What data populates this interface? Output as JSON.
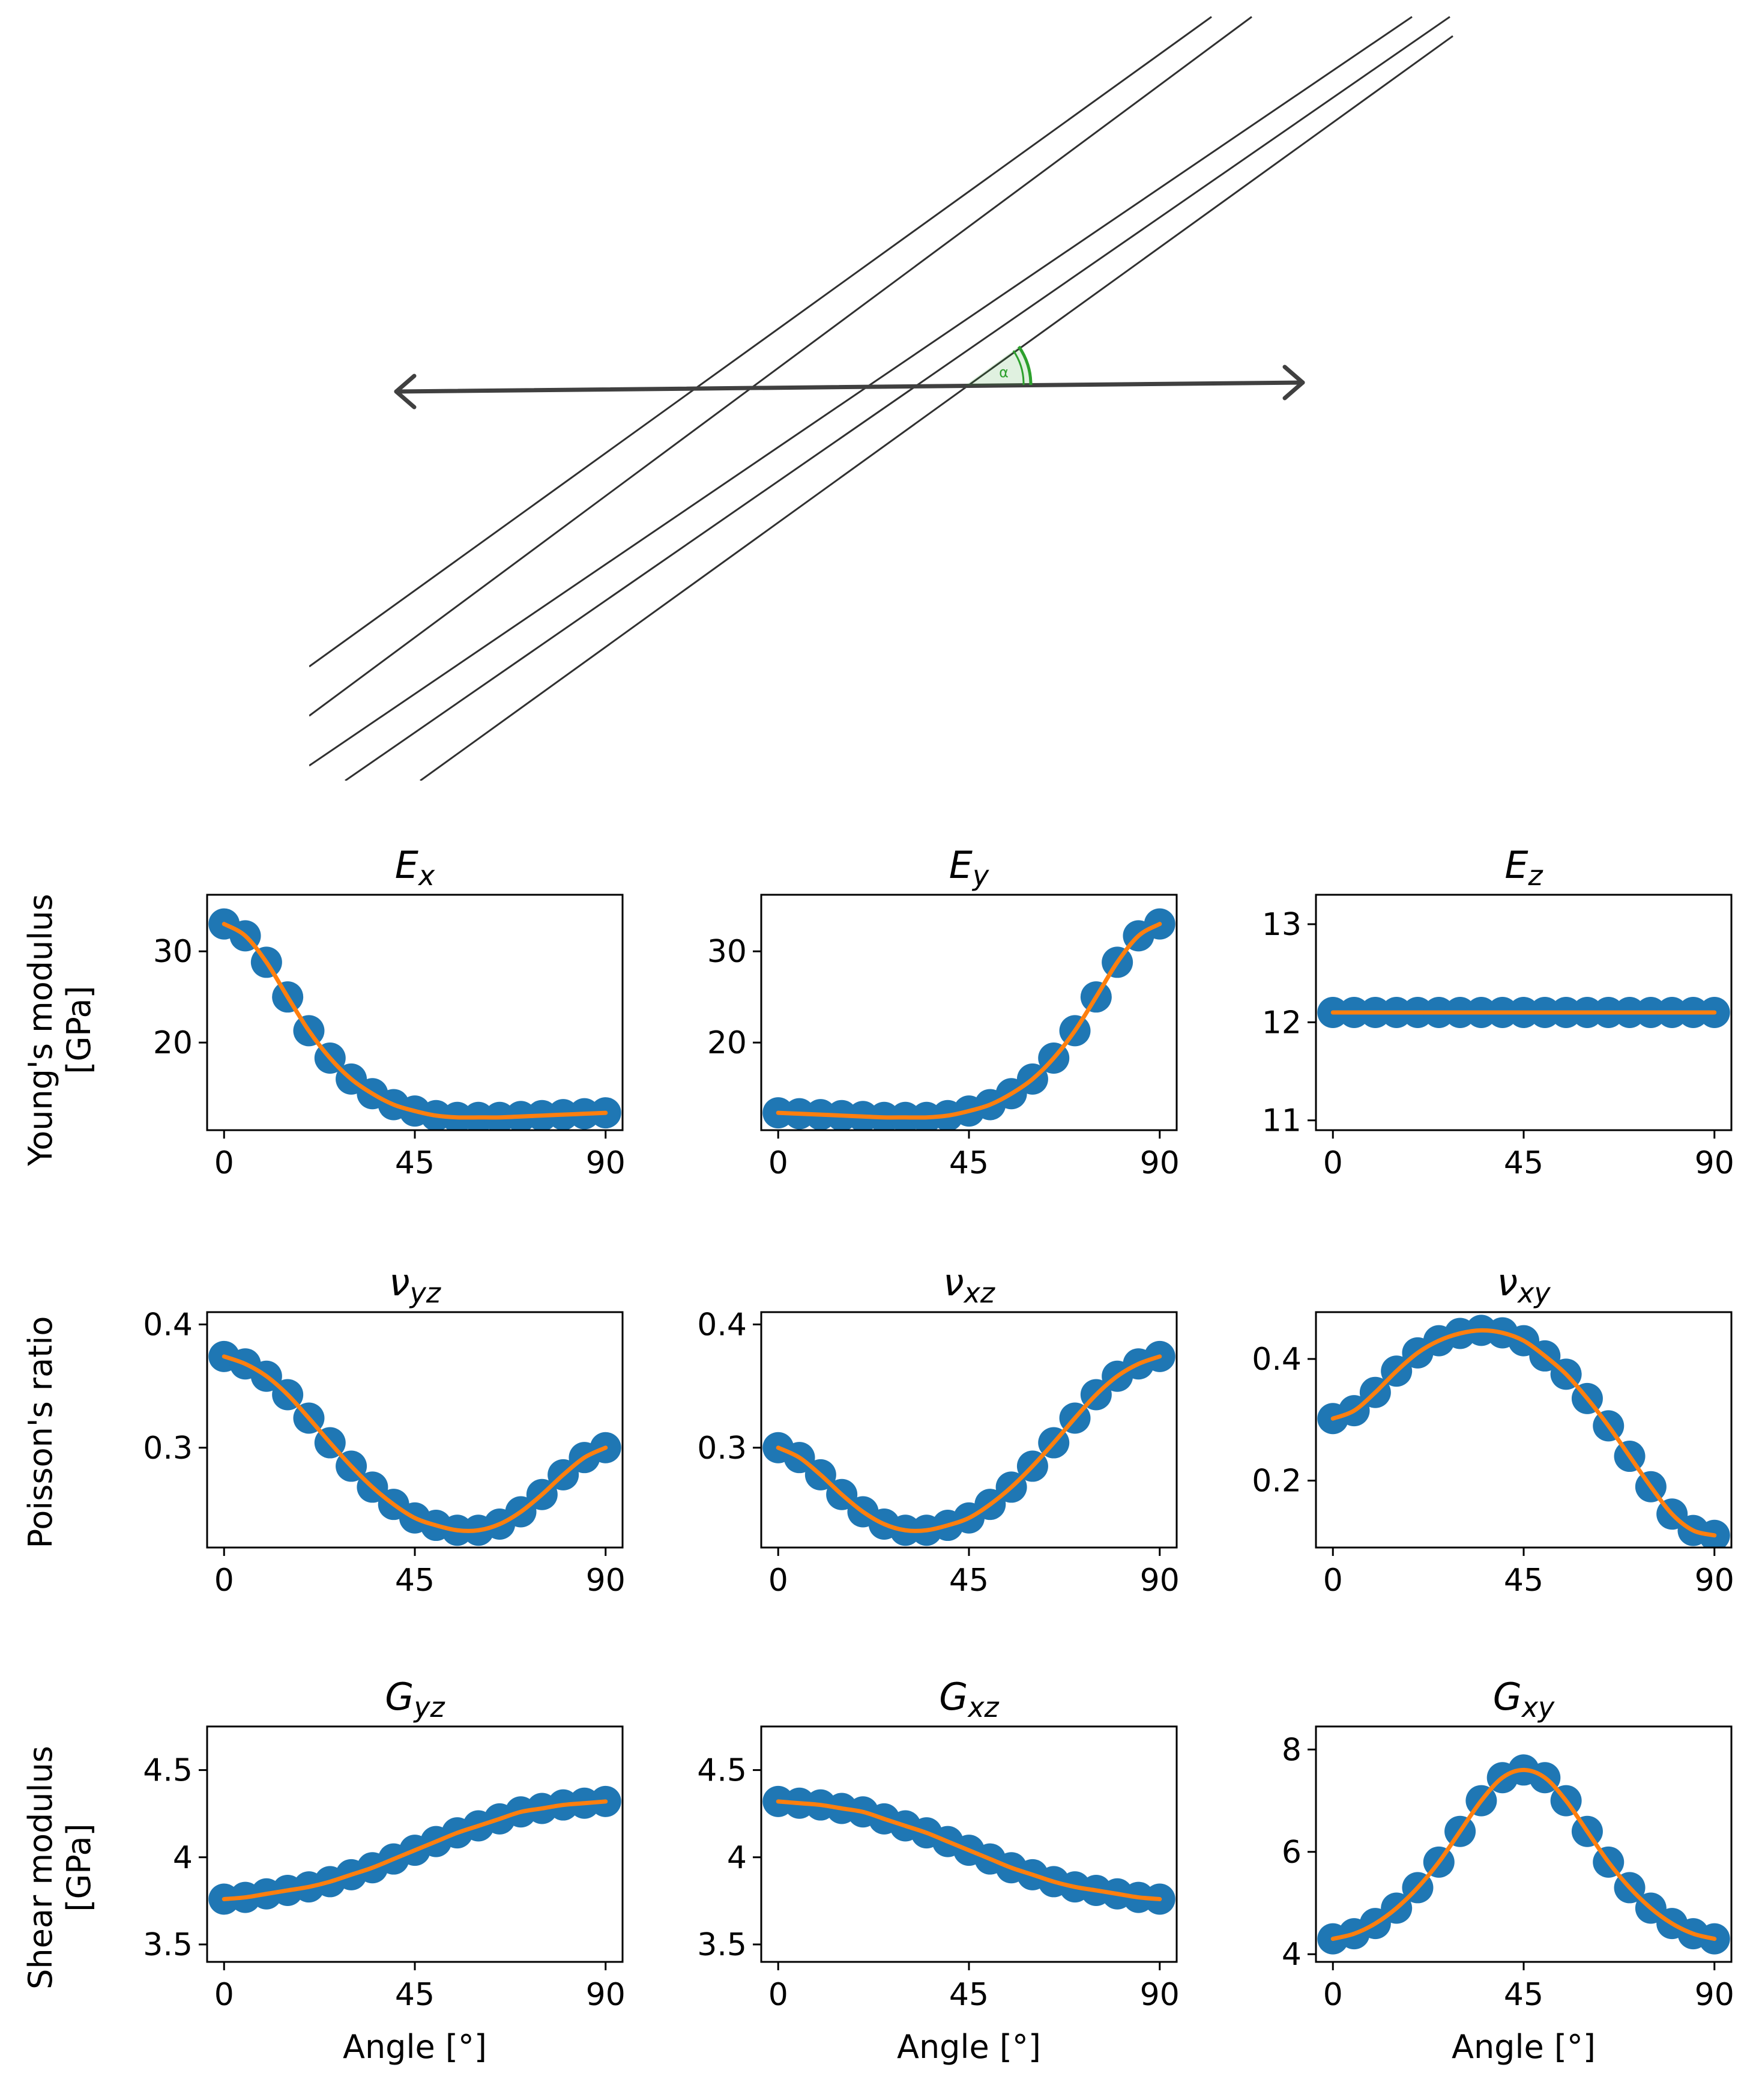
{
  "diagram": {
    "angle_symbol": "α"
  },
  "row_labels": [
    [
      "Young's modulus",
      "[GPa]"
    ],
    [
      "Poisson's ratio"
    ],
    [
      "Shear modulus",
      "[GPa]"
    ]
  ],
  "colors": {
    "marker": "#1f77b4",
    "line": "#ff7f0e",
    "arrow": "#404040",
    "angle_arc": "#2ca02c"
  },
  "chart_data": [
    {
      "type": "line",
      "title_main": "E",
      "title_sub": "x",
      "xlabel": "",
      "ylabel": "",
      "xlim": [
        -4,
        94
      ],
      "ylim": [
        10.4,
        36.2
      ],
      "xticks": [
        0,
        45,
        90
      ],
      "yticks": [
        20,
        30
      ],
      "x": [
        0,
        5,
        10,
        15,
        20,
        25,
        30,
        35,
        40,
        45,
        50,
        55,
        60,
        65,
        70,
        75,
        80,
        85,
        90
      ],
      "series": [
        {
          "values": [
            33.0,
            31.7,
            28.8,
            25.0,
            21.3,
            18.3,
            16.0,
            14.4,
            13.2,
            12.5,
            12.0,
            11.8,
            11.8,
            11.8,
            11.9,
            12.0,
            12.1,
            12.2,
            12.3
          ]
        }
      ]
    },
    {
      "type": "line",
      "title_main": "E",
      "title_sub": "y",
      "xlabel": "",
      "ylabel": "",
      "xlim": [
        -4,
        94
      ],
      "ylim": [
        10.4,
        36.2
      ],
      "xticks": [
        0,
        45,
        90
      ],
      "yticks": [
        20,
        30
      ],
      "x": [
        0,
        5,
        10,
        15,
        20,
        25,
        30,
        35,
        40,
        45,
        50,
        55,
        60,
        65,
        70,
        75,
        80,
        85,
        90
      ],
      "series": [
        {
          "values": [
            12.3,
            12.2,
            12.1,
            12.0,
            11.9,
            11.8,
            11.8,
            11.8,
            12.0,
            12.5,
            13.2,
            14.4,
            16.0,
            18.3,
            21.3,
            25.0,
            28.8,
            31.7,
            33.0
          ]
        }
      ]
    },
    {
      "type": "line",
      "title_main": "E",
      "title_sub": "z",
      "xlabel": "",
      "ylabel": "",
      "xlim": [
        -4,
        94
      ],
      "ylim": [
        10.9,
        13.3
      ],
      "xticks": [
        0,
        45,
        90
      ],
      "yticks": [
        11,
        12,
        13
      ],
      "x": [
        0,
        5,
        10,
        15,
        20,
        25,
        30,
        35,
        40,
        45,
        50,
        55,
        60,
        65,
        70,
        75,
        80,
        85,
        90
      ],
      "series": [
        {
          "values": [
            12.1,
            12.1,
            12.1,
            12.1,
            12.1,
            12.1,
            12.1,
            12.1,
            12.1,
            12.1,
            12.1,
            12.1,
            12.1,
            12.1,
            12.1,
            12.1,
            12.1,
            12.1,
            12.1
          ]
        }
      ]
    },
    {
      "type": "line",
      "title_main": "ν",
      "title_sub": "yz",
      "xlabel": "",
      "ylabel": "",
      "xlim": [
        -4,
        94
      ],
      "ylim": [
        0.219,
        0.41
      ],
      "xticks": [
        0,
        45,
        90
      ],
      "yticks": [
        0.3,
        0.4
      ],
      "x": [
        0,
        5,
        10,
        15,
        20,
        25,
        30,
        35,
        40,
        45,
        50,
        55,
        60,
        65,
        70,
        75,
        80,
        85,
        90
      ],
      "series": [
        {
          "values": [
            0.374,
            0.368,
            0.358,
            0.343,
            0.324,
            0.304,
            0.285,
            0.268,
            0.254,
            0.243,
            0.237,
            0.233,
            0.233,
            0.238,
            0.248,
            0.262,
            0.278,
            0.292,
            0.3
          ]
        }
      ]
    },
    {
      "type": "line",
      "title_main": "ν",
      "title_sub": "xz",
      "xlabel": "",
      "ylabel": "",
      "xlim": [
        -4,
        94
      ],
      "ylim": [
        0.219,
        0.41
      ],
      "xticks": [
        0,
        45,
        90
      ],
      "yticks": [
        0.3,
        0.4
      ],
      "x": [
        0,
        5,
        10,
        15,
        20,
        25,
        30,
        35,
        40,
        45,
        50,
        55,
        60,
        65,
        70,
        75,
        80,
        85,
        90
      ],
      "series": [
        {
          "values": [
            0.3,
            0.292,
            0.278,
            0.262,
            0.248,
            0.238,
            0.233,
            0.233,
            0.237,
            0.243,
            0.254,
            0.268,
            0.285,
            0.304,
            0.324,
            0.343,
            0.358,
            0.368,
            0.374
          ]
        }
      ]
    },
    {
      "type": "line",
      "title_main": "ν",
      "title_sub": "xy",
      "xlabel": "",
      "ylabel": "",
      "xlim": [
        -4,
        94
      ],
      "ylim": [
        0.09,
        0.477
      ],
      "xticks": [
        0,
        45,
        90
      ],
      "yticks": [
        0.2,
        0.4
      ],
      "x": [
        0,
        5,
        10,
        15,
        20,
        25,
        30,
        35,
        40,
        45,
        50,
        55,
        60,
        65,
        70,
        75,
        80,
        85,
        90
      ],
      "series": [
        {
          "values": [
            0.302,
            0.315,
            0.345,
            0.38,
            0.41,
            0.43,
            0.442,
            0.447,
            0.443,
            0.43,
            0.405,
            0.375,
            0.335,
            0.29,
            0.24,
            0.19,
            0.145,
            0.118,
            0.11
          ]
        }
      ]
    },
    {
      "type": "line",
      "title_main": "G",
      "title_sub": "yz",
      "xlabel": "Angle [°]",
      "ylabel": "",
      "xlim": [
        -4,
        94
      ],
      "ylim": [
        3.4,
        4.75
      ],
      "xticks": [
        0,
        45,
        90
      ],
      "yticks": [
        3.5,
        4.0,
        4.5
      ],
      "x": [
        0,
        5,
        10,
        15,
        20,
        25,
        30,
        35,
        40,
        45,
        50,
        55,
        60,
        65,
        70,
        75,
        80,
        85,
        90
      ],
      "series": [
        {
          "values": [
            3.76,
            3.77,
            3.79,
            3.81,
            3.83,
            3.86,
            3.9,
            3.94,
            3.99,
            4.04,
            4.09,
            4.14,
            4.18,
            4.22,
            4.26,
            4.28,
            4.3,
            4.31,
            4.32
          ]
        }
      ]
    },
    {
      "type": "line",
      "title_main": "G",
      "title_sub": "xz",
      "xlabel": "Angle [°]",
      "ylabel": "",
      "xlim": [
        -4,
        94
      ],
      "ylim": [
        3.4,
        4.75
      ],
      "xticks": [
        0,
        45,
        90
      ],
      "yticks": [
        3.5,
        4.0,
        4.5
      ],
      "x": [
        0,
        5,
        10,
        15,
        20,
        25,
        30,
        35,
        40,
        45,
        50,
        55,
        60,
        65,
        70,
        75,
        80,
        85,
        90
      ],
      "series": [
        {
          "values": [
            4.32,
            4.31,
            4.3,
            4.28,
            4.26,
            4.22,
            4.18,
            4.14,
            4.09,
            4.04,
            3.99,
            3.94,
            3.9,
            3.86,
            3.83,
            3.81,
            3.79,
            3.77,
            3.76
          ]
        }
      ]
    },
    {
      "type": "line",
      "title_main": "G",
      "title_sub": "xy",
      "xlabel": "Angle [°]",
      "ylabel": "",
      "xlim": [
        -4,
        94
      ],
      "ylim": [
        3.85,
        8.45
      ],
      "xticks": [
        0,
        45,
        90
      ],
      "yticks": [
        4,
        6,
        8
      ],
      "x": [
        0,
        5,
        10,
        15,
        20,
        25,
        30,
        35,
        40,
        45,
        50,
        55,
        60,
        65,
        70,
        75,
        80,
        85,
        90
      ],
      "series": [
        {
          "values": [
            4.3,
            4.4,
            4.6,
            4.9,
            5.3,
            5.8,
            6.4,
            7.0,
            7.45,
            7.6,
            7.45,
            7.0,
            6.4,
            5.8,
            5.3,
            4.9,
            4.6,
            4.4,
            4.3
          ]
        }
      ]
    }
  ]
}
